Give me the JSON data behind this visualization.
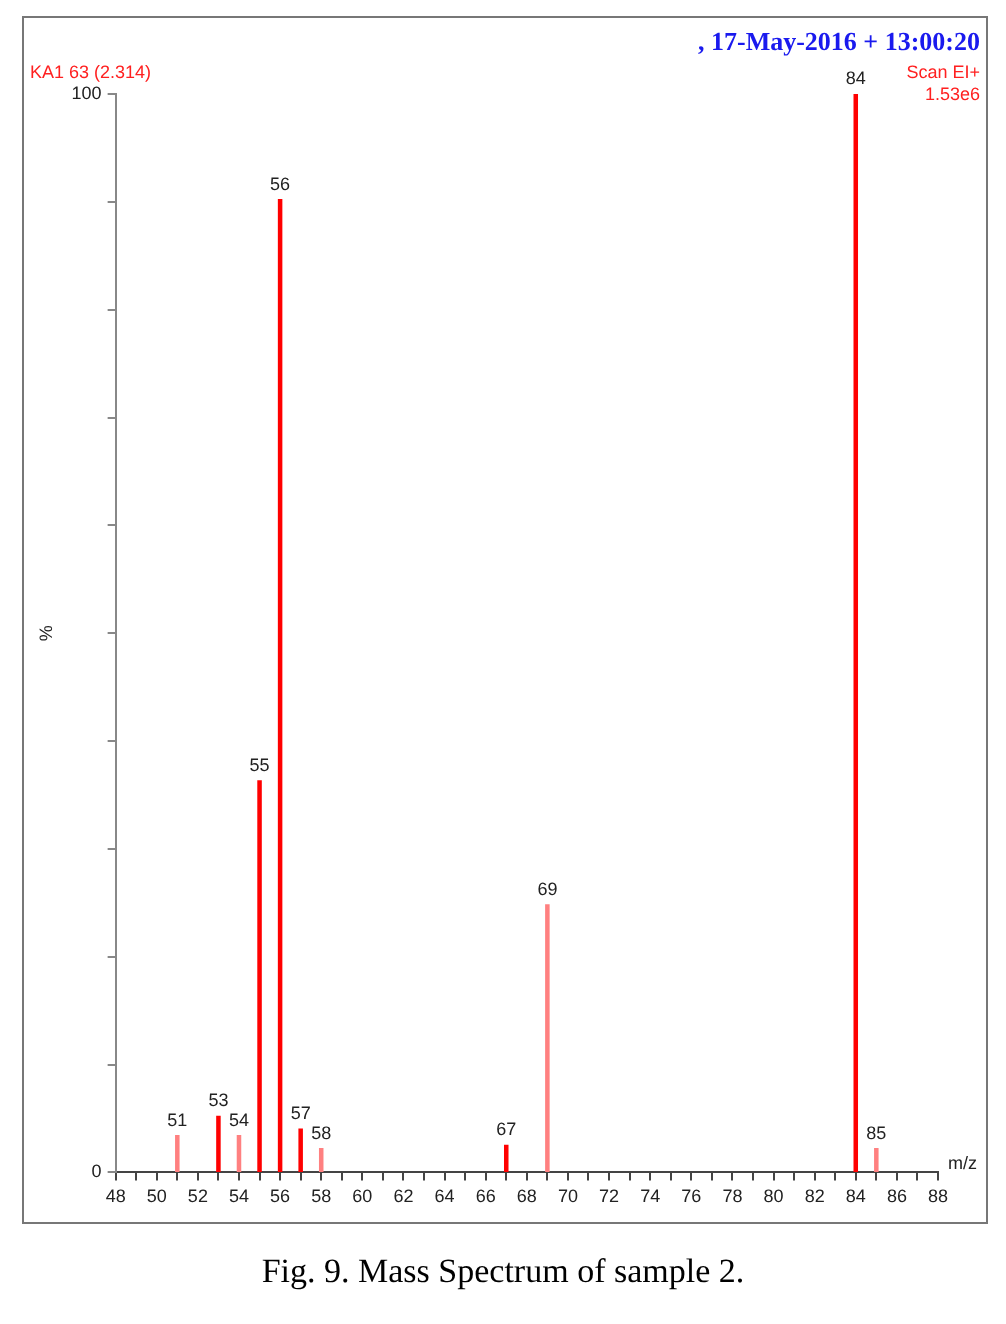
{
  "chart_data": {
    "type": "bar",
    "xlabel": "m/z",
    "ylabel": "%",
    "x": [
      51,
      53,
      54,
      55,
      56,
      57,
      58,
      67,
      69,
      84,
      85
    ],
    "values": [
      3.4,
      5.2,
      3.4,
      36.3,
      90.2,
      4.0,
      2.2,
      2.5,
      24.8,
      100,
      2.2
    ],
    "colors": [
      "#ff8080",
      "#ff0000",
      "#ff8080",
      "#ff0000",
      "#ff0000",
      "#ff0000",
      "#ff8080",
      "#ff0000",
      "#ff8080",
      "#ff0000",
      "#ff8080"
    ],
    "xlim": [
      48,
      88
    ],
    "xticks": [
      48,
      {
        "value": 49,
        "label": null
      },
      50,
      {
        "value": 51,
        "label": null
      },
      52,
      {
        "value": 53,
        "label": null
      },
      54,
      {
        "value": 55,
        "label": null
      },
      56,
      {
        "value": 57,
        "label": null
      },
      58,
      {
        "value": 59,
        "label": null
      },
      60,
      {
        "value": 61,
        "label": null
      },
      62,
      {
        "value": 63,
        "label": null
      },
      64,
      {
        "value": 65,
        "label": null
      },
      66,
      {
        "value": 67,
        "label": null
      },
      68,
      {
        "value": 69,
        "label": null
      },
      70,
      {
        "value": 71,
        "label": null
      },
      72,
      {
        "value": 73,
        "label": null
      },
      74,
      {
        "value": 75,
        "label": null
      },
      76,
      {
        "value": 77,
        "label": null
      },
      78,
      {
        "value": 79,
        "label": null
      },
      80,
      {
        "value": 81,
        "label": null
      },
      82,
      {
        "value": 83,
        "label": null
      },
      84,
      {
        "value": 85,
        "label": null
      },
      86,
      {
        "value": 87,
        "label": null
      },
      88
    ],
    "ylim": [
      0,
      100
    ],
    "yticks": [
      0,
      {
        "value": 10,
        "label": null
      },
      {
        "value": 20,
        "label": null
      },
      {
        "value": 30,
        "label": null
      },
      {
        "value": 40,
        "label": null
      },
      {
        "value": 50,
        "label": null
      },
      {
        "value": 60,
        "label": null
      },
      {
        "value": 70,
        "label": null
      },
      {
        "value": 80,
        "label": null
      },
      {
        "value": 90,
        "label": null
      },
      100
    ],
    "grid": false,
    "legend": false,
    "annotations": [
      ", 17-May-2016 + 13:00:20",
      "KA1 63 (2.314)",
      "Scan EI+",
      "1.53e6",
      "Fig. 9. Mass Spectrum of sample 2.",
      {
        "text": "51",
        "x": 51,
        "y": 3.4
      },
      {
        "text": "53",
        "x": 53,
        "y": 5.2
      },
      {
        "text": "54",
        "x": 54,
        "y": 3.4
      },
      {
        "text": "55",
        "x": 55,
        "y": 36.3
      },
      {
        "text": "56",
        "x": 56,
        "y": 90.2
      },
      {
        "text": "57",
        "x": 57,
        "y": 4.0
      },
      {
        "text": "58",
        "x": 58,
        "y": 2.2
      },
      {
        "text": "67",
        "x": 67,
        "y": 2.5
      },
      {
        "text": "69",
        "x": 69,
        "y": 24.8
      },
      {
        "text": "84",
        "x": 84,
        "y": 100
      },
      {
        "text": "85",
        "x": 85,
        "y": 2.2
      }
    ]
  }
}
